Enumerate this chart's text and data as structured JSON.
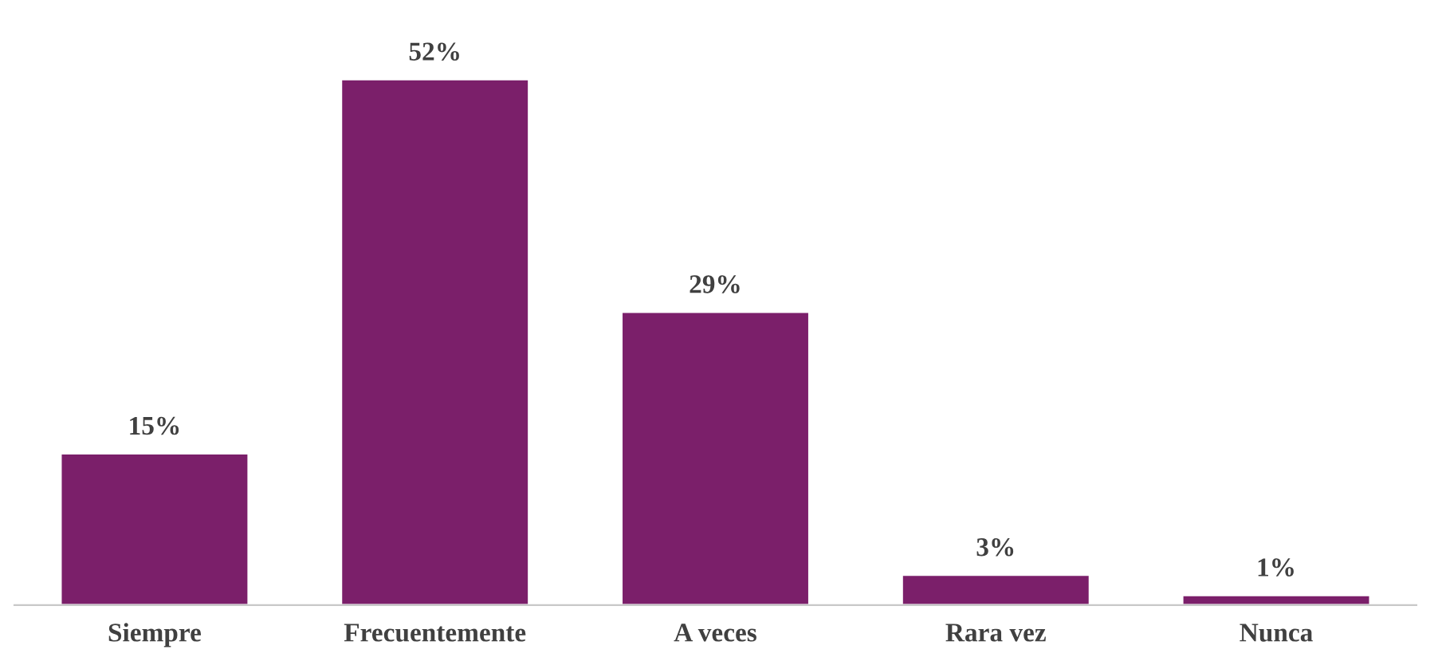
{
  "chart_data": {
    "type": "bar",
    "categories": [
      "Siempre",
      "Frecuentemente",
      "A veces",
      "Rara vez",
      "Nunca"
    ],
    "values": [
      15,
      52,
      29,
      3,
      1
    ],
    "value_labels": [
      "15%",
      "52%",
      "29%",
      "3%",
      "1%"
    ],
    "color": "#7b1f6a"
  }
}
